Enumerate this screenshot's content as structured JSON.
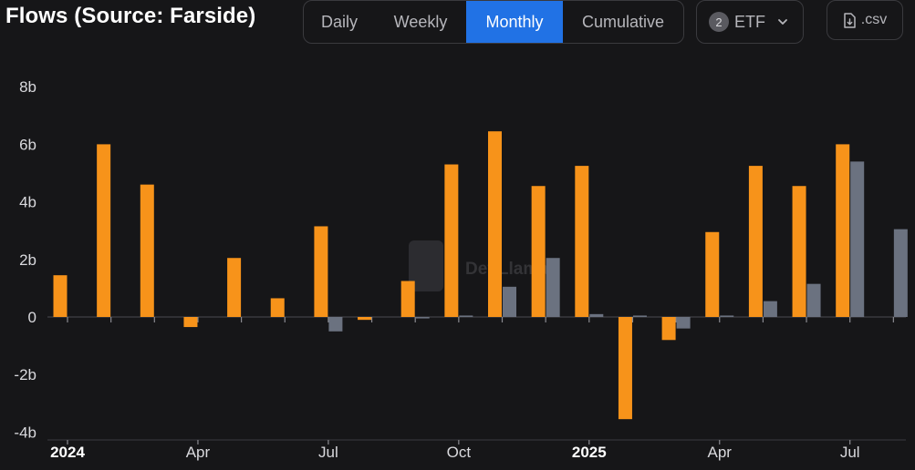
{
  "header": {
    "title": "Flows (Source: Farside)",
    "tabs": [
      "Daily",
      "Weekly",
      "Monthly",
      "Cumulative"
    ],
    "active_tab": "Monthly",
    "etf_count": "2",
    "etf_label": "ETF",
    "csv_label": ".csv"
  },
  "watermark": "DefiLlama",
  "colors": {
    "background": "#161618",
    "accent": "#2172e5",
    "series1": "#f7931a",
    "series2": "#6b7280"
  },
  "chart_data": {
    "type": "bar",
    "categories": [
      "2024-01",
      "2024-02",
      "2024-03",
      "2024-04",
      "2024-05",
      "2024-06",
      "2024-07",
      "2024-08",
      "2024-09",
      "2024-10",
      "2024-11",
      "2024-12",
      "2025-01",
      "2025-02",
      "2025-03",
      "2025-04",
      "2025-05",
      "2025-06",
      "2025-07",
      "2025-08"
    ],
    "series": [
      {
        "values": [
          1.45,
          6.0,
          4.6,
          -0.35,
          2.05,
          0.65,
          3.15,
          -0.1,
          1.25,
          5.3,
          6.45,
          4.55,
          5.25,
          -3.55,
          -0.8,
          2.95,
          5.25,
          4.55,
          6.0,
          null
        ]
      },
      {
        "values": [
          null,
          null,
          null,
          null,
          null,
          null,
          -0.5,
          null,
          -0.05,
          0.05,
          1.05,
          2.05,
          0.1,
          0.05,
          -0.4,
          0.05,
          0.55,
          1.15,
          5.4,
          3.05
        ]
      }
    ],
    "xticks": [
      {
        "label": "2024",
        "index": 0,
        "bold": true
      },
      {
        "label": "Apr",
        "index": 3,
        "bold": false
      },
      {
        "label": "Jul",
        "index": 6,
        "bold": false
      },
      {
        "label": "Oct",
        "index": 9,
        "bold": false
      },
      {
        "label": "2025",
        "index": 12,
        "bold": true
      },
      {
        "label": "Apr",
        "index": 15,
        "bold": false
      },
      {
        "label": "Jul",
        "index": 18,
        "bold": false
      }
    ],
    "yticks": [
      {
        "value": 8,
        "label": "8b"
      },
      {
        "value": 6,
        "label": "6b"
      },
      {
        "value": 4,
        "label": "4b"
      },
      {
        "value": 2,
        "label": "2b"
      },
      {
        "value": 0,
        "label": "0"
      },
      {
        "value": -2,
        "label": "-2b"
      },
      {
        "value": -4,
        "label": "-4b"
      }
    ],
    "ylim": [
      -4,
      8
    ],
    "grid": false,
    "legend": "none"
  }
}
